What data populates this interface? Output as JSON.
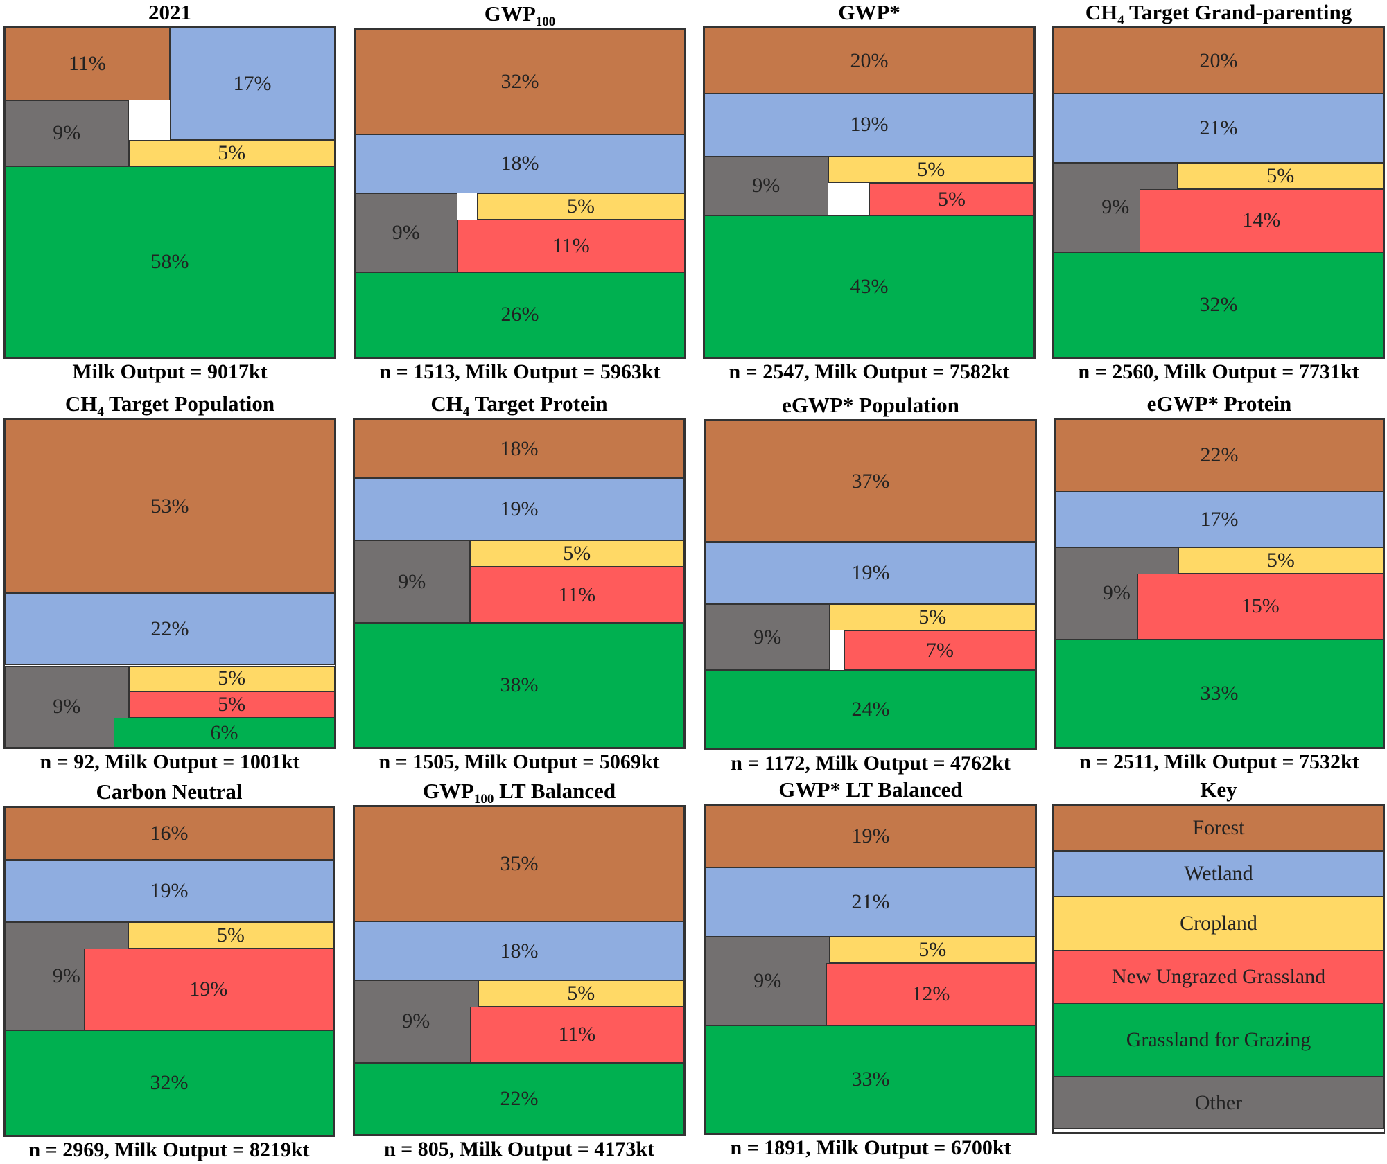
{
  "colors": {
    "forest": "#C4784A",
    "wetland": "#8FADE0",
    "cropland": "#FFD966",
    "new_ungrazed_grassland": "#FF5B5B",
    "grassland_for_grazing": "#00B050",
    "other": "#737070"
  },
  "chart_data": [
    {
      "type": "treemap",
      "title": "2021",
      "caption": "Milk Output = 9017kt",
      "cells": [
        {
          "category": "forest",
          "label": "11%"
        },
        {
          "category": "wetland",
          "label": "17%"
        },
        {
          "category": "other",
          "label": "9%"
        },
        {
          "category": "cropland",
          "label": "5%"
        },
        {
          "category": "grassland_for_grazing",
          "label": "58%"
        }
      ]
    },
    {
      "type": "treemap",
      "title": "GWP",
      "title_sub": "100",
      "caption": "n = 1513, Milk Output = 5963kt",
      "cells": [
        {
          "category": "forest",
          "label": "32%"
        },
        {
          "category": "wetland",
          "label": "18%"
        },
        {
          "category": "other",
          "label": "9%"
        },
        {
          "category": "cropland",
          "label": "5%"
        },
        {
          "category": "new_ungrazed_grassland",
          "label": "11%"
        },
        {
          "category": "grassland_for_grazing",
          "label": "26%"
        }
      ]
    },
    {
      "type": "treemap",
      "title": "GWP*",
      "caption": "n = 2547, Milk Output = 7582kt",
      "cells": [
        {
          "category": "forest",
          "label": "20%"
        },
        {
          "category": "wetland",
          "label": "19%"
        },
        {
          "category": "other",
          "label": "9%"
        },
        {
          "category": "cropland",
          "label": "5%"
        },
        {
          "category": "new_ungrazed_grassland",
          "label": "5%"
        },
        {
          "category": "grassland_for_grazing",
          "label": "43%"
        }
      ]
    },
    {
      "type": "treemap",
      "title": "CH",
      "title_sub": "4",
      "title_rest": " Target Grand-parenting",
      "caption": "n = 2560, Milk Output = 7731kt",
      "cells": [
        {
          "category": "forest",
          "label": "20%"
        },
        {
          "category": "wetland",
          "label": "21%"
        },
        {
          "category": "other",
          "label": "9%"
        },
        {
          "category": "cropland",
          "label": "5%"
        },
        {
          "category": "new_ungrazed_grassland",
          "label": "14%"
        },
        {
          "category": "grassland_for_grazing",
          "label": "32%"
        }
      ]
    },
    {
      "type": "treemap",
      "title": "CH",
      "title_sub": "4",
      "title_rest": " Target Population",
      "caption": "n = 92, Milk Output = 1001kt",
      "cells": [
        {
          "category": "forest",
          "label": "53%"
        },
        {
          "category": "wetland",
          "label": "22%"
        },
        {
          "category": "other",
          "label": "9%"
        },
        {
          "category": "cropland",
          "label": "5%"
        },
        {
          "category": "new_ungrazed_grassland",
          "label": "5%"
        },
        {
          "category": "grassland_for_grazing",
          "label": "6%"
        }
      ]
    },
    {
      "type": "treemap",
      "title": "CH",
      "title_sub": "4",
      "title_rest": " Target Protein",
      "caption": "n = 1505, Milk Output = 5069kt",
      "cells": [
        {
          "category": "forest",
          "label": "18%"
        },
        {
          "category": "wetland",
          "label": "19%"
        },
        {
          "category": "other",
          "label": "9%"
        },
        {
          "category": "cropland",
          "label": "5%"
        },
        {
          "category": "new_ungrazed_grassland",
          "label": "11%"
        },
        {
          "category": "grassland_for_grazing",
          "label": "38%"
        }
      ]
    },
    {
      "type": "treemap",
      "title": "eGWP* Population",
      "caption": "n = 1172, Milk Output = 4762kt",
      "cells": [
        {
          "category": "forest",
          "label": "37%"
        },
        {
          "category": "wetland",
          "label": "19%"
        },
        {
          "category": "other",
          "label": "9%"
        },
        {
          "category": "cropland",
          "label": "5%"
        },
        {
          "category": "new_ungrazed_grassland",
          "label": "7%"
        },
        {
          "category": "grassland_for_grazing",
          "label": "24%"
        }
      ]
    },
    {
      "type": "treemap",
      "title": "eGWP* Protein",
      "caption": "n = 2511, Milk Output = 7532kt",
      "cells": [
        {
          "category": "forest",
          "label": "22%"
        },
        {
          "category": "wetland",
          "label": "17%"
        },
        {
          "category": "other",
          "label": "9%"
        },
        {
          "category": "cropland",
          "label": "5%"
        },
        {
          "category": "new_ungrazed_grassland",
          "label": "15%"
        },
        {
          "category": "grassland_for_grazing",
          "label": "33%"
        }
      ]
    },
    {
      "type": "treemap",
      "title": "Carbon Neutral",
      "caption": "n = 2969, Milk Output = 8219kt",
      "cells": [
        {
          "category": "forest",
          "label": "16%"
        },
        {
          "category": "wetland",
          "label": "19%"
        },
        {
          "category": "other",
          "label": "9%"
        },
        {
          "category": "cropland",
          "label": "5%"
        },
        {
          "category": "new_ungrazed_grassland",
          "label": "19%"
        },
        {
          "category": "grassland_for_grazing",
          "label": "32%"
        }
      ]
    },
    {
      "type": "treemap",
      "title": "GWP",
      "title_sub": "100",
      "title_rest": " LT Balanced",
      "caption": "n = 805, Milk Output = 4173kt",
      "cells": [
        {
          "category": "forest",
          "label": "35%"
        },
        {
          "category": "wetland",
          "label": "18%"
        },
        {
          "category": "other",
          "label": "9%"
        },
        {
          "category": "cropland",
          "label": "5%"
        },
        {
          "category": "new_ungrazed_grassland",
          "label": "11%"
        },
        {
          "category": "grassland_for_grazing",
          "label": "22%"
        }
      ]
    },
    {
      "type": "treemap",
      "title": "GWP* LT Balanced",
      "caption": "n = 1891, Milk Output = 6700kt",
      "cells": [
        {
          "category": "forest",
          "label": "19%"
        },
        {
          "category": "wetland",
          "label": "21%"
        },
        {
          "category": "other",
          "label": "9%"
        },
        {
          "category": "cropland",
          "label": "5%"
        },
        {
          "category": "new_ungrazed_grassland",
          "label": "12%"
        },
        {
          "category": "grassland_for_grazing",
          "label": "33%"
        }
      ]
    }
  ],
  "key": {
    "title": "Key",
    "items": [
      {
        "category": "forest",
        "label": "Forest"
      },
      {
        "category": "wetland",
        "label": "Wetland"
      },
      {
        "category": "cropland",
        "label": "Cropland"
      },
      {
        "category": "new_ungrazed_grassland",
        "label": "New Ungrazed Grassland"
      },
      {
        "category": "grassland_for_grazing",
        "label": "Grassland for Grazing"
      },
      {
        "category": "other",
        "label": "Other"
      }
    ]
  }
}
